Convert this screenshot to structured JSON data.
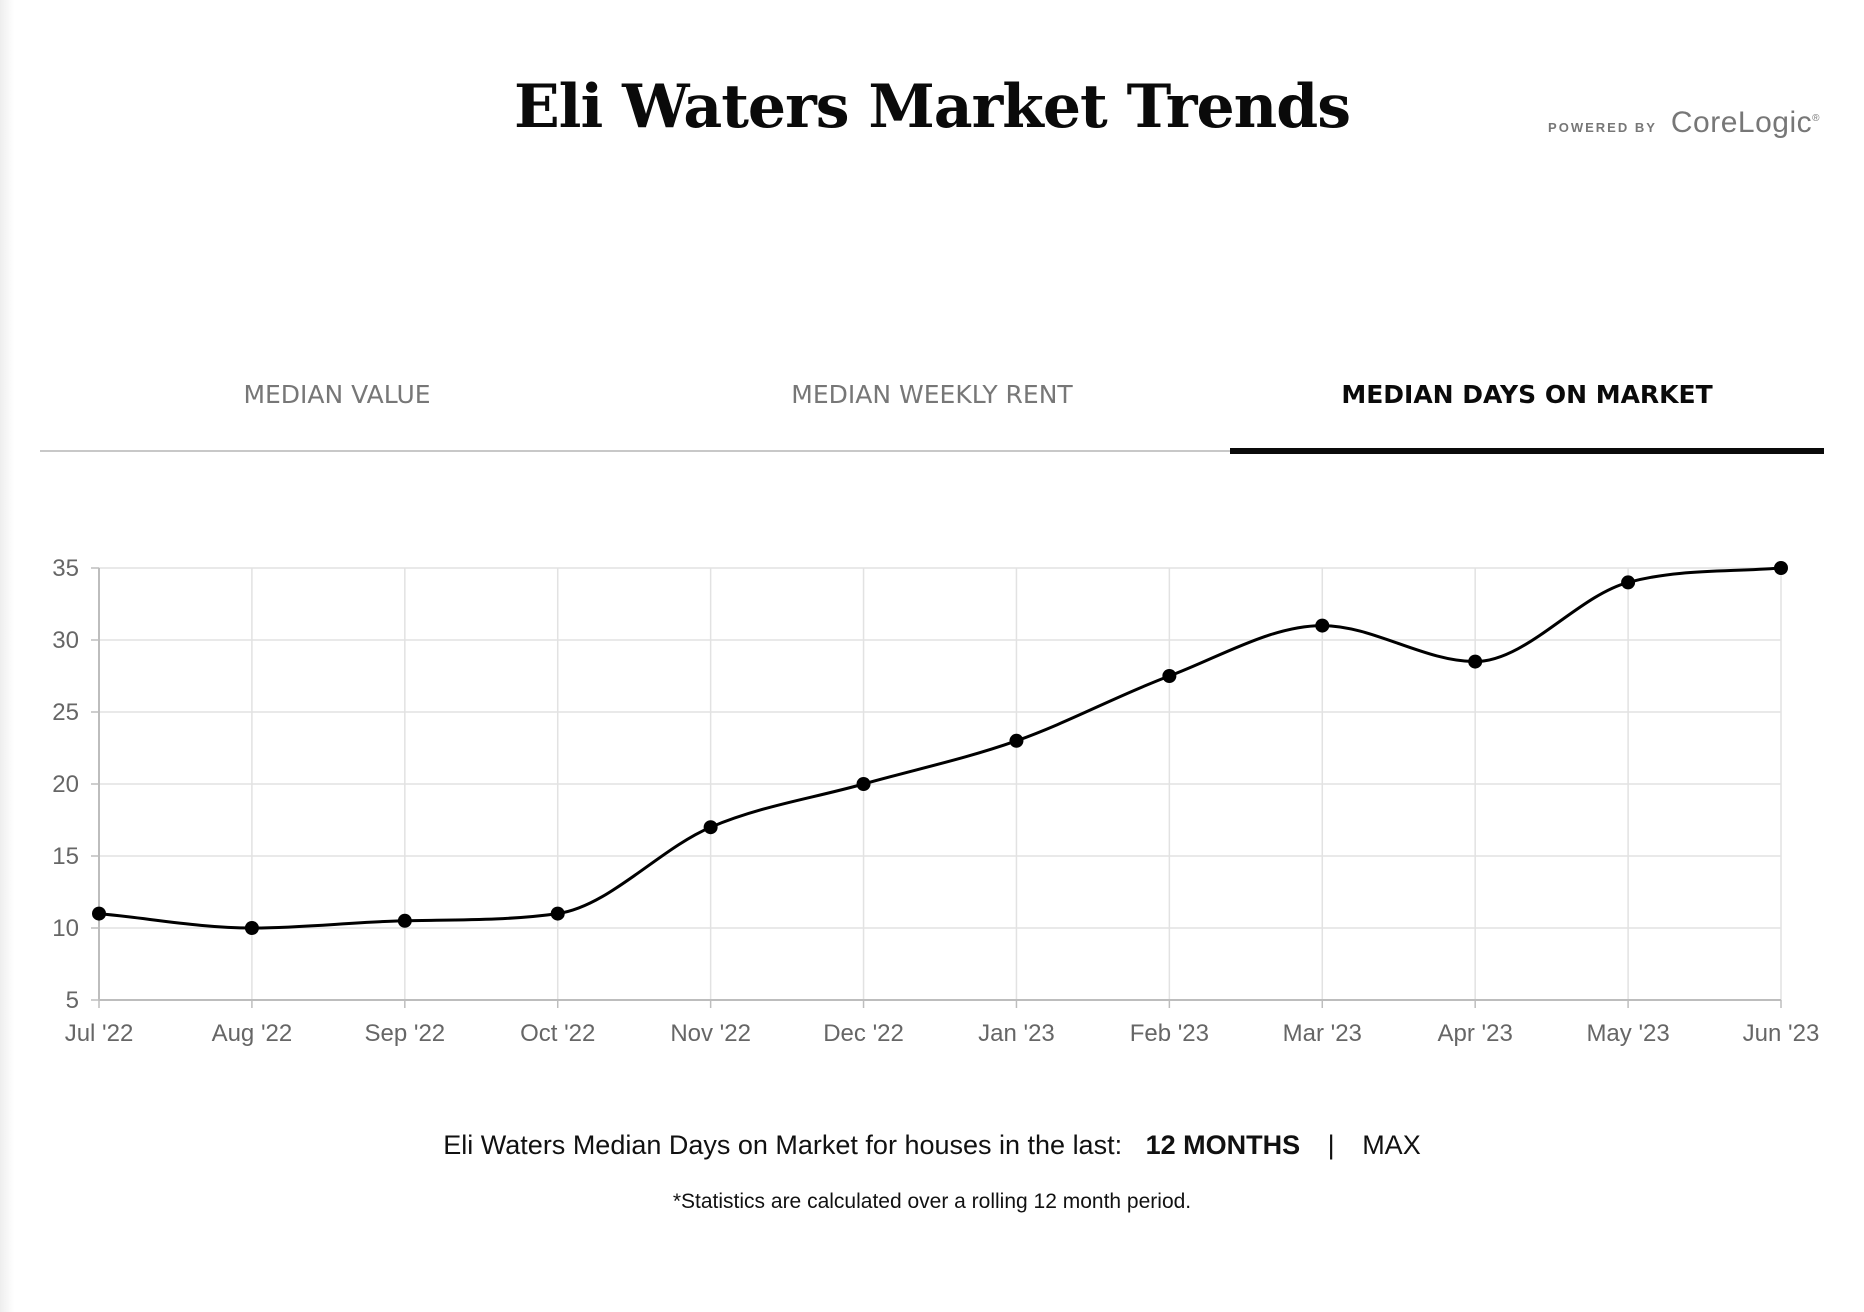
{
  "header": {
    "title": "Eli Waters Market Trends",
    "brand_prefix": "POWERED BY",
    "brand_name": "CoreLogic",
    "brand_mark": "®"
  },
  "tabs": [
    {
      "label": "MEDIAN VALUE",
      "active": false
    },
    {
      "label": "MEDIAN WEEKLY RENT",
      "active": false
    },
    {
      "label": "MEDIAN DAYS ON MARKET",
      "active": true
    }
  ],
  "chart_data": {
    "type": "line",
    "categories": [
      "Jul '22",
      "Aug '22",
      "Sep '22",
      "Oct '22",
      "Nov '22",
      "Dec '22",
      "Jan '23",
      "Feb '23",
      "Mar '23",
      "Apr '23",
      "May '23",
      "Jun '23"
    ],
    "series": [
      {
        "values": [
          11,
          10,
          10.5,
          11,
          17,
          20,
          23,
          27.5,
          31,
          28.5,
          34,
          35
        ]
      }
    ],
    "yticks": [
      5,
      10,
      15,
      20,
      25,
      30,
      35
    ],
    "ylim": [
      5,
      35
    ],
    "grid": true,
    "legend": "none",
    "colors": {
      "line": "#000000",
      "grid": "#e2e2e2",
      "axis": "#bdbdbd",
      "tick_label": "#666666"
    }
  },
  "footer": {
    "caption": "Eli Waters Median Days on Market for houses in the last:",
    "options": [
      {
        "label": "12 MONTHS",
        "selected": true
      },
      {
        "label": "MAX",
        "selected": false
      }
    ],
    "separator": "|",
    "note": "*Statistics are calculated over a rolling 12 month period."
  }
}
